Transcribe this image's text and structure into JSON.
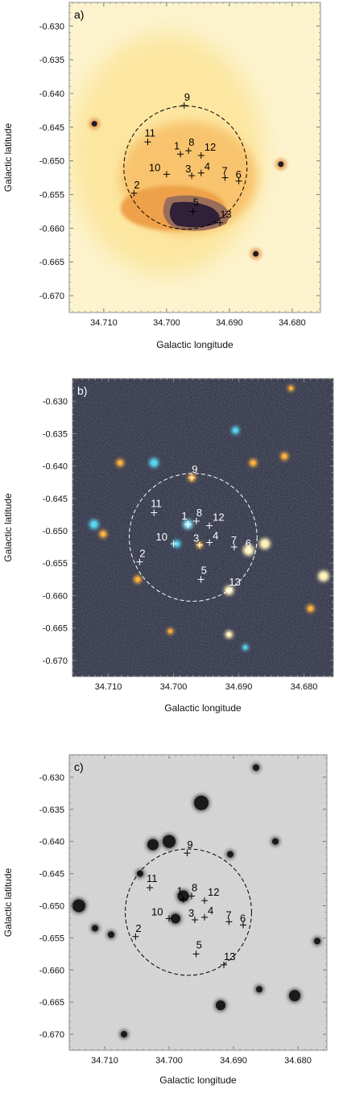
{
  "figure": {
    "xlabel": "Galactic longitude",
    "ylabel": "Galactic latitude",
    "x_ticks": [
      "34.710",
      "34.700",
      "34.690",
      "34.680"
    ],
    "y_ticks": [
      "-0.630",
      "-0.635",
      "-0.640",
      "-0.645",
      "-0.650",
      "-0.655",
      "-0.660",
      "-0.665",
      "-0.670"
    ]
  },
  "chart_data": [
    {
      "type": "scatter",
      "panel": "a)",
      "image": "orange-colormap",
      "xlabel": "Galactic longitude",
      "ylabel": "Galactic latitude",
      "xlim": [
        34.7155,
        34.6755
      ],
      "ylim": [
        -0.6725,
        -0.6265
      ],
      "circle": {
        "center": [
          34.697,
          -0.651
        ],
        "radius_deg": 0.0098
      },
      "points": [
        {
          "label": "1",
          "x": 34.6978,
          "y": -0.649
        },
        {
          "label": "2",
          "x": 34.7052,
          "y": -0.6548
        },
        {
          "label": "3",
          "x": 34.696,
          "y": -0.6522
        },
        {
          "label": "4",
          "x": 34.6945,
          "y": -0.6518
        },
        {
          "label": "5",
          "x": 34.6958,
          "y": -0.6575
        },
        {
          "label": "6",
          "x": 34.6885,
          "y": -0.653
        },
        {
          "label": "7",
          "x": 34.6907,
          "y": -0.6525
        },
        {
          "label": "8",
          "x": 34.6965,
          "y": -0.6485
        },
        {
          "label": "9",
          "x": 34.6972,
          "y": -0.6418
        },
        {
          "label": "10",
          "x": 34.7,
          "y": -0.652
        },
        {
          "label": "11",
          "x": 34.703,
          "y": -0.6472
        },
        {
          "label": "12",
          "x": 34.6945,
          "y": -0.6492
        },
        {
          "label": "13",
          "x": 34.6915,
          "y": -0.6592
        }
      ]
    },
    {
      "type": "scatter",
      "panel": "b)",
      "image": "dark-color-composite",
      "xlabel": "Galactic longitude",
      "ylabel": "Galactic latitude",
      "xlim": [
        34.7155,
        34.6755
      ],
      "ylim": [
        -0.6725,
        -0.6265
      ],
      "circle": {
        "center": [
          34.697,
          -0.651
        ],
        "radius_deg": 0.0098
      },
      "points": [
        {
          "label": "1",
          "x": 34.6978,
          "y": -0.649
        },
        {
          "label": "2",
          "x": 34.7052,
          "y": -0.6548
        },
        {
          "label": "3",
          "x": 34.696,
          "y": -0.6522
        },
        {
          "label": "4",
          "x": 34.6945,
          "y": -0.6518
        },
        {
          "label": "5",
          "x": 34.6958,
          "y": -0.6575
        },
        {
          "label": "6",
          "x": 34.6885,
          "y": -0.653
        },
        {
          "label": "7",
          "x": 34.6907,
          "y": -0.6525
        },
        {
          "label": "8",
          "x": 34.6965,
          "y": -0.6485
        },
        {
          "label": "9",
          "x": 34.6972,
          "y": -0.6418
        },
        {
          "label": "10",
          "x": 34.7,
          "y": -0.652
        },
        {
          "label": "11",
          "x": 34.703,
          "y": -0.6472
        },
        {
          "label": "12",
          "x": 34.6945,
          "y": -0.6492
        },
        {
          "label": "13",
          "x": 34.6915,
          "y": -0.6592
        }
      ]
    },
    {
      "type": "scatter",
      "panel": "c)",
      "image": "grayscale",
      "xlabel": "Galactic longitude",
      "ylabel": "Galactic latitude",
      "xlim": [
        34.7155,
        34.6755
      ],
      "ylim": [
        -0.6725,
        -0.6265
      ],
      "circle": {
        "center": [
          34.697,
          -0.651
        ],
        "radius_deg": 0.0098
      },
      "points": [
        {
          "label": "1",
          "x": 34.6978,
          "y": -0.649
        },
        {
          "label": "2",
          "x": 34.7052,
          "y": -0.6548
        },
        {
          "label": "3",
          "x": 34.696,
          "y": -0.6522
        },
        {
          "label": "4",
          "x": 34.6945,
          "y": -0.6518
        },
        {
          "label": "5",
          "x": 34.6958,
          "y": -0.6575
        },
        {
          "label": "6",
          "x": 34.6885,
          "y": -0.653
        },
        {
          "label": "7",
          "x": 34.6907,
          "y": -0.6525
        },
        {
          "label": "8",
          "x": 34.6965,
          "y": -0.6485
        },
        {
          "label": "9",
          "x": 34.6972,
          "y": -0.6418
        },
        {
          "label": "10",
          "x": 34.7,
          "y": -0.652
        },
        {
          "label": "11",
          "x": 34.703,
          "y": -0.6472
        },
        {
          "label": "12",
          "x": 34.6945,
          "y": -0.6492
        },
        {
          "label": "13",
          "x": 34.6915,
          "y": -0.6592
        }
      ]
    }
  ]
}
